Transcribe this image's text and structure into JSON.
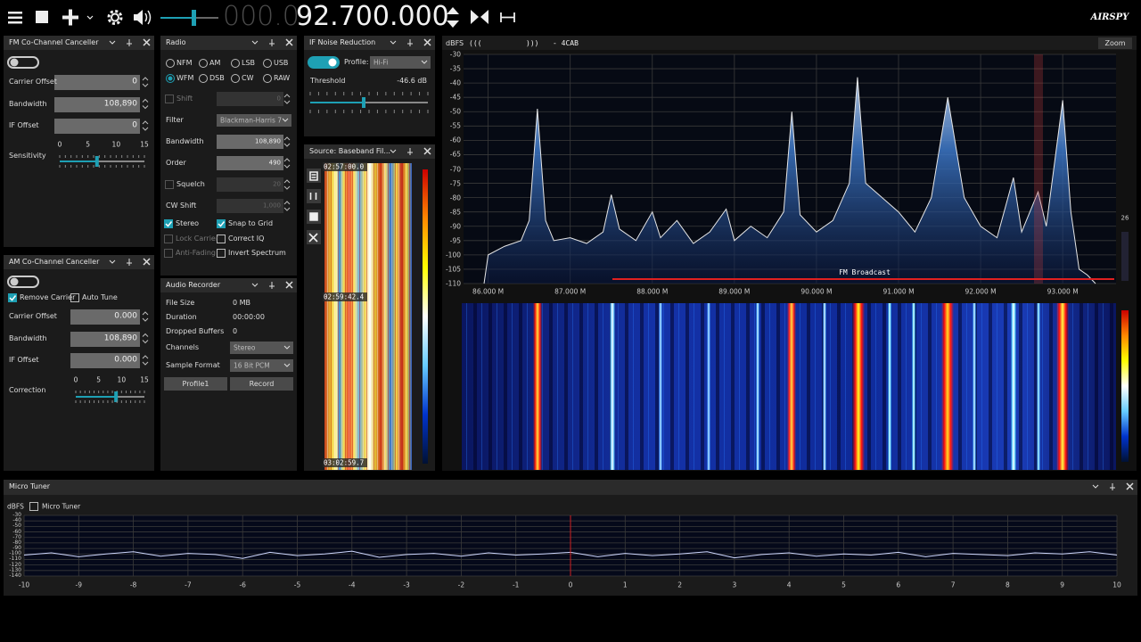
{
  "toolbar": {
    "frequency_dim": "000.0",
    "frequency": "92.700.000",
    "logo": "AIRSPY"
  },
  "fm_cc": {
    "title": "FM Co-Channel Canceller",
    "enabled": false,
    "fields": [
      {
        "label": "Carrier Offset",
        "value": "0"
      },
      {
        "label": "Bandwidth",
        "value": "108,890"
      },
      {
        "label": "IF Offset",
        "value": "0"
      }
    ],
    "slider": {
      "label": "Sensitivity",
      "ticks": [
        0,
        5,
        10,
        15
      ],
      "value": 6.6
    }
  },
  "radio": {
    "title": "Radio",
    "modes": [
      {
        "label": "NFM",
        "selected": false
      },
      {
        "label": "AM",
        "selected": false
      },
      {
        "label": "LSB",
        "selected": false
      },
      {
        "label": "USB",
        "selected": false
      },
      {
        "label": "WFM",
        "selected": true
      },
      {
        "label": "DSB",
        "selected": false
      },
      {
        "label": "CW",
        "selected": false
      },
      {
        "label": "RAW",
        "selected": false
      }
    ],
    "rows": [
      {
        "label": "Shift",
        "value": "0",
        "check": false,
        "enabled": false
      },
      {
        "label": "Filter",
        "value": "Blackman-Harris 7",
        "combo": true,
        "enabled": true
      },
      {
        "label": "Bandwidth",
        "value": "108,890",
        "enabled": true
      },
      {
        "label": "Order",
        "value": "490",
        "enabled": true
      },
      {
        "label": "Squelch",
        "value": "20",
        "check": false,
        "enabled": false
      },
      {
        "label": "CW Shift",
        "value": "1,000",
        "enabled": false
      }
    ],
    "options": [
      {
        "label": "Stereo",
        "checked": true,
        "enabled": true
      },
      {
        "label": "Snap to Grid",
        "checked": true,
        "enabled": true
      },
      {
        "label": "Lock Carrier",
        "checked": false,
        "enabled": false
      },
      {
        "label": "Correct IQ",
        "checked": false,
        "enabled": true
      },
      {
        "label": "Anti-Fading",
        "checked": false,
        "enabled": false
      },
      {
        "label": "Invert Spectrum",
        "checked": false,
        "enabled": true
      }
    ]
  },
  "if_nr": {
    "title": "IF Noise Reduction",
    "enabled": true,
    "profile_label": "Profile:",
    "profile": "Hi-Fi",
    "threshold_label": "Threshold",
    "threshold": "-46.6 dB"
  },
  "source": {
    "title": "Source: Baseband Fil...",
    "times": [
      "02:57:00.0",
      "02:59:42.4",
      "03:02:59.7"
    ]
  },
  "am_cc": {
    "title": "AM Co-Channel Canceller",
    "enabled": false,
    "options": [
      {
        "label": "Remove Carrier",
        "checked": true
      },
      {
        "label": "Auto Tune",
        "checked": false
      }
    ],
    "fields": [
      {
        "label": "Carrier Offset",
        "value": "0.000"
      },
      {
        "label": "Bandwidth",
        "value": "108,890"
      },
      {
        "label": "IF Offset",
        "value": "0.000"
      }
    ],
    "slider": {
      "label": "Correction",
      "ticks": [
        0,
        5,
        10,
        15
      ],
      "value": 8.8
    }
  },
  "audio_recorder": {
    "title": "Audio Recorder",
    "rows": [
      {
        "label": "File Size",
        "value": "0 MB"
      },
      {
        "label": "Duration",
        "value": "00:00:00"
      },
      {
        "label": "Dropped Buffers",
        "value": "0"
      }
    ],
    "combos": [
      {
        "label": "Channels",
        "value": "Stereo"
      },
      {
        "label": "Sample Format",
        "value": "16 Bit PCM"
      }
    ],
    "buttons": [
      "Profile1",
      "Record"
    ]
  },
  "spectrum": {
    "y_label": "dBFS",
    "header": [
      "(((",
      ")))",
      "- 4CAB"
    ],
    "zoom": "Zoom",
    "band_label": "FM Broadcast",
    "side_value": "26",
    "xlim": [
      85.7,
      93.65
    ],
    "ylim": [
      -110,
      -30
    ],
    "xticks": [
      {
        "value": 86,
        "label": "86.000 M"
      },
      {
        "value": 87,
        "label": "87.000 M"
      },
      {
        "value": 88,
        "label": "88.000 M"
      },
      {
        "value": 89,
        "label": "89.000 M"
      },
      {
        "value": 90,
        "label": "90.000 M"
      },
      {
        "value": 91,
        "label": "91.000 M"
      },
      {
        "value": 92,
        "label": "92.000 M"
      },
      {
        "value": 93,
        "label": "93.000 M"
      }
    ],
    "yticks": [
      -30,
      -35,
      -40,
      -45,
      -50,
      -55,
      -60,
      -65,
      -70,
      -75,
      -80,
      -85,
      -90,
      -95,
      -100,
      -105,
      -110
    ],
    "x": [
      85.95,
      86.0,
      86.2,
      86.4,
      86.5,
      86.6,
      86.7,
      86.8,
      87.0,
      87.2,
      87.4,
      87.5,
      87.6,
      87.8,
      88.0,
      88.1,
      88.3,
      88.5,
      88.7,
      88.9,
      89.0,
      89.2,
      89.4,
      89.6,
      89.7,
      89.8,
      90.0,
      90.2,
      90.4,
      90.5,
      90.6,
      90.8,
      91.0,
      91.2,
      91.4,
      91.6,
      91.8,
      92.0,
      92.2,
      92.4,
      92.5,
      92.7,
      92.8,
      93.0,
      93.1,
      93.2,
      93.3,
      93.4
    ],
    "values": [
      -110,
      -100,
      -97,
      -95,
      -88,
      -49,
      -88,
      -95,
      -94,
      -96,
      -92,
      -79,
      -91,
      -95,
      -85,
      -94,
      -88,
      -96,
      -92,
      -84,
      -95,
      -90,
      -94,
      -85,
      -50,
      -86,
      -92,
      -88,
      -75,
      -38,
      -75,
      -80,
      -85,
      -92,
      -80,
      -45,
      -80,
      -90,
      -94,
      -73,
      -92,
      -78,
      -90,
      -46,
      -85,
      -105,
      -107,
      -110
    ]
  },
  "micro_tuner": {
    "title": "Micro Tuner",
    "y_label": "dBFS",
    "checkbox": "Micro Tuner",
    "xlim": [
      -10,
      10
    ],
    "ylim": [
      -140,
      -30
    ],
    "xticks": [
      -10,
      -9,
      -8,
      -7,
      -6,
      -5,
      -4,
      -3,
      -2,
      -1,
      0,
      1,
      2,
      3,
      4,
      5,
      6,
      7,
      8,
      9,
      10
    ],
    "yticks": [
      -30,
      -40,
      -50,
      -60,
      -70,
      -80,
      -90,
      -100,
      -110,
      -120,
      -130,
      -140
    ],
    "x": [
      -10,
      -9.5,
      -9,
      -8.5,
      -8,
      -7.5,
      -7,
      -6.5,
      -6,
      -5.5,
      -5,
      -4.5,
      -4,
      -3.5,
      -3,
      -2.5,
      -2,
      -1.5,
      -1,
      -0.5,
      0,
      0.5,
      1,
      1.5,
      2,
      2.5,
      3,
      3.5,
      4,
      4.5,
      5,
      5.5,
      6,
      6.5,
      7,
      7.5,
      8,
      8.5,
      9,
      9.5,
      10
    ],
    "values": [
      -102,
      -98,
      -105,
      -100,
      -96,
      -104,
      -99,
      -101,
      -108,
      -97,
      -103,
      -100,
      -95,
      -106,
      -101,
      -99,
      -104,
      -98,
      -102,
      -100,
      -97,
      -105,
      -99,
      -103,
      -100,
      -96,
      -107,
      -101,
      -98,
      -104,
      -100,
      -102,
      -97,
      -105,
      -99,
      -101,
      -103,
      -98,
      -100,
      -96,
      -102
    ]
  }
}
